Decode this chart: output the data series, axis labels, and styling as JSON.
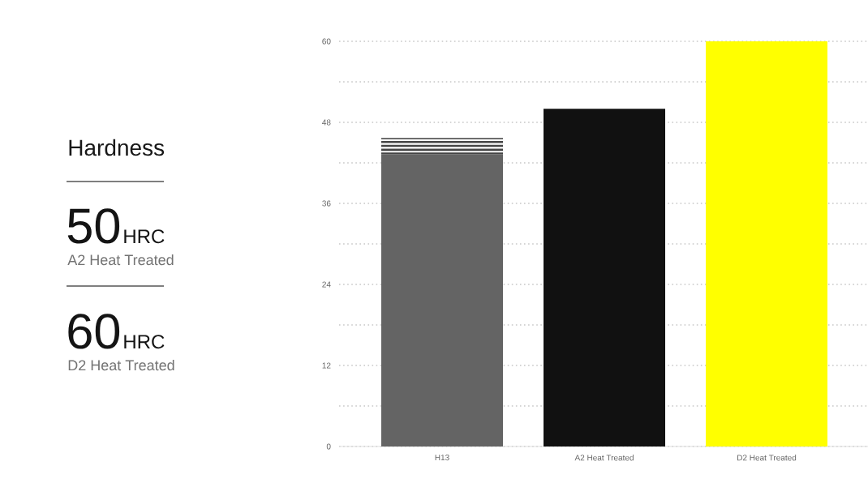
{
  "chart_data": {
    "type": "bar",
    "title": "Hardness",
    "stacked": true,
    "grid": "y",
    "categories": [
      "H13",
      "A2 Heat Treated",
      "D2 Heat Treated"
    ],
    "series": [
      {
        "colors": [
          "#646464",
          "#111111",
          "#ffff00"
        ],
        "values": [
          43.3,
          50,
          60
        ]
      },
      {
        "color": "#444444",
        "values": [
          2.4,
          null,
          null
        ]
      }
    ],
    "ylim": [
      0,
      60
    ],
    "yticks": [
      0,
      {
        "value": 6,
        "label": null
      },
      12,
      {
        "value": 18,
        "label": null
      },
      24,
      {
        "value": 30,
        "label": null
      },
      36,
      {
        "value": 42,
        "label": null
      },
      48,
      {
        "value": 54,
        "label": null
      },
      60
    ],
    "annotations": [
      "50",
      "HRC",
      "A2 Heat Treated",
      "60",
      "HRC",
      "D2 Heat Treated"
    ]
  }
}
